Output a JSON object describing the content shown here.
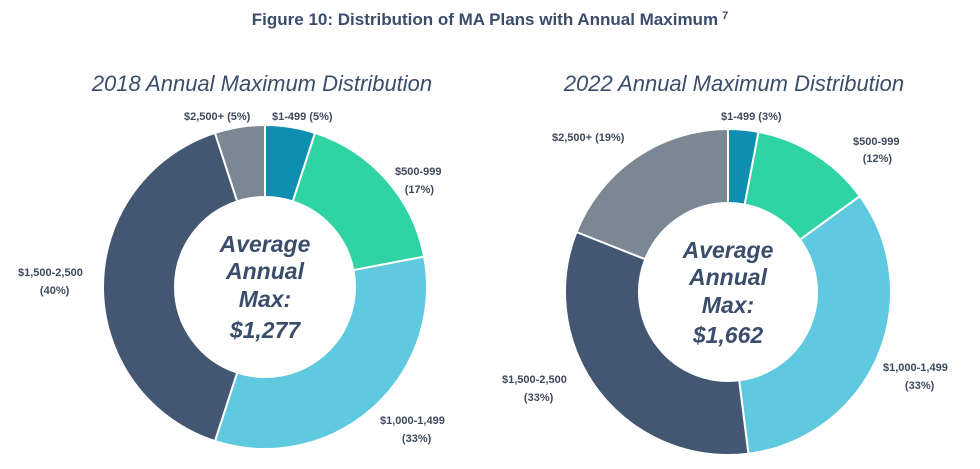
{
  "figure": {
    "title": "Figure 10: Distribution of MA Plans with Annual Maximum",
    "footnote_marker": "7"
  },
  "colors": {
    "$1-499": "#0f8fb0",
    "$500-999": "#2fd3a4",
    "$1,000-1,499": "#5ec9df",
    "$1,500-2,500": "#435672",
    "$2,500+": "#7b8893"
  },
  "chart_data": [
    {
      "type": "pie",
      "donut": true,
      "title": "2018 Annual Maximum Distribution",
      "center_lines": [
        "Average",
        "Annual",
        "Max:",
        "$1,277"
      ],
      "slices": [
        {
          "category": "$1-499",
          "value": 5,
          "label": "$1-499 (5%)"
        },
        {
          "category": "$500-999",
          "value": 17,
          "label": "$500-999",
          "pct_label": "(17%)"
        },
        {
          "category": "$1,000-1,499",
          "value": 33,
          "label": "$1,000-1,499",
          "pct_label": "(33%)"
        },
        {
          "category": "$1,500-2,500",
          "value": 40,
          "label": "$1,500-2,500",
          "pct_label": "(40%)"
        },
        {
          "category": "$2,500+",
          "value": 5,
          "label": "$2,500+ (5%)"
        }
      ]
    },
    {
      "type": "pie",
      "donut": true,
      "title": "2022 Annual Maximum Distribution",
      "center_lines": [
        "Average",
        "Annual",
        "Max:",
        "$1,662"
      ],
      "slices": [
        {
          "category": "$1-499",
          "value": 3,
          "label": "$1-499 (3%)"
        },
        {
          "category": "$500-999",
          "value": 12,
          "label": "$500-999",
          "pct_label": "(12%)"
        },
        {
          "category": "$1,000-1,499",
          "value": 33,
          "label": "$1,000-1,499",
          "pct_label": "(33%)"
        },
        {
          "category": "$1,500-2,500",
          "value": 33,
          "label": "$1,500-2,500",
          "pct_label": "(33%)"
        },
        {
          "category": "$2,500+",
          "value": 19,
          "label": "$2,500+ (19%)"
        }
      ]
    }
  ]
}
